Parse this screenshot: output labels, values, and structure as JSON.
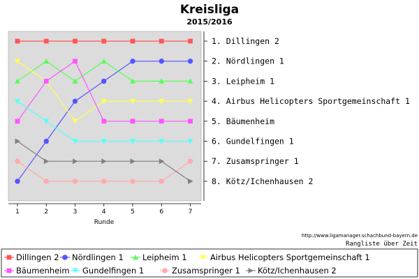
{
  "chart_data": {
    "type": "line",
    "title": "Kreisliga",
    "subtitle": "2015/2016",
    "xlabel": "Runde",
    "ylabel": "",
    "x": [
      1,
      2,
      3,
      4,
      5,
      6,
      7
    ],
    "ylim": [
      1,
      8
    ],
    "y_inverted": true,
    "grid": false,
    "legend_placement": "bottom",
    "plot_background": "#dcdcdc",
    "series": [
      {
        "name": "Dillingen 2",
        "color": "#ff5555",
        "marker": "square",
        "values": [
          1,
          1,
          1,
          1,
          1,
          1,
          1
        ]
      },
      {
        "name": "Nördlingen 1",
        "color": "#5555ff",
        "marker": "circle",
        "values": [
          8,
          6,
          4,
          3,
          2,
          2,
          2
        ]
      },
      {
        "name": "Leipheim 1",
        "color": "#55ff55",
        "marker": "triangle-up",
        "values": [
          3,
          2,
          3,
          2,
          3,
          3,
          3
        ]
      },
      {
        "name": "Airbus Helicopters Sportgemeinschaft 1",
        "color": "#ffff55",
        "marker": "triangle-down",
        "values": [
          2,
          3,
          5,
          4,
          4,
          4,
          4
        ]
      },
      {
        "name": "Bäumenheim",
        "color": "#ff55ff",
        "marker": "square",
        "values": [
          5,
          3,
          2,
          5,
          5,
          5,
          5
        ]
      },
      {
        "name": "Gundelfingen 1",
        "color": "#55ffff",
        "marker": "triangle-down",
        "values": [
          4,
          5,
          6,
          6,
          6,
          6,
          6
        ]
      },
      {
        "name": "Zusamspringer 1",
        "color": "#ffaaaa",
        "marker": "circle",
        "values": [
          7,
          8,
          8,
          8,
          8,
          8,
          7
        ]
      },
      {
        "name": "Kötz/Ichenhausen 2",
        "color": "#808080",
        "marker": "triangle-right",
        "values": [
          6,
          7,
          7,
          7,
          7,
          7,
          8
        ]
      }
    ],
    "final_ranking": [
      "1. Dillingen 2",
      "2. Nördlingen 1",
      "3. Leipheim 1",
      "4. Airbus Helicopters Sportgemeinschaft 1",
      "5. Bäumenheim",
      "6. Gundelfingen 1",
      "7. Zusamspringer 1",
      "8. Kötz/Ichenhausen 2"
    ],
    "source": "http://www.ligamanager.schachbund-bayern.de",
    "note": "Rangliste über Zeit"
  }
}
